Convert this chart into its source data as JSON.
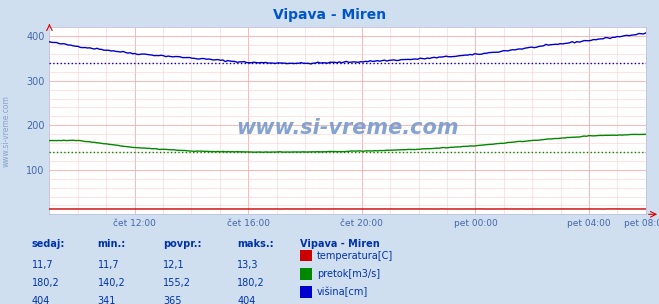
{
  "title": "Vipava - Miren",
  "title_color": "#0055cc",
  "background_color": "#d0dff0",
  "plot_bg_color": "#ffffff",
  "grid_color": "#ffaaaa",
  "grid_minor_color": "#ffd0d0",
  "ylabel_color": "#4466aa",
  "xticklabel_color": "#4466aa",
  "ylim": [
    0,
    420
  ],
  "yticks": [
    100,
    200,
    300,
    400
  ],
  "x_tick_labels": [
    "čet 12:00",
    "čet 16:00",
    "čet 20:00",
    "pet 00:00",
    "pet 04:00",
    "pet 08:00"
  ],
  "temperatura_color": "#cc0000",
  "pretok_color": "#008800",
  "visina_color": "#0000cc",
  "visina_avg": 340,
  "pretok_avg": 140,
  "title_fontsize": 10,
  "legend_title": "Vipava - Miren",
  "legend_items": [
    "temperatura[C]",
    "pretok[m3/s]",
    "višina[cm]"
  ],
  "legend_colors": [
    "#cc0000",
    "#008800",
    "#0000cc"
  ],
  "table_headers": [
    "sedaj:",
    "min.:",
    "povpr.:",
    "maks.:"
  ],
  "table_values": [
    [
      "11,7",
      "11,7",
      "12,1",
      "13,3"
    ],
    [
      "180,2",
      "140,2",
      "155,2",
      "180,2"
    ],
    [
      "404",
      "341",
      "365",
      "404"
    ]
  ],
  "watermark_text": "www.si-vreme.com",
  "watermark_color": "#7799cc",
  "side_label": "www.si-vreme.com",
  "side_label_color": "#6688bb"
}
